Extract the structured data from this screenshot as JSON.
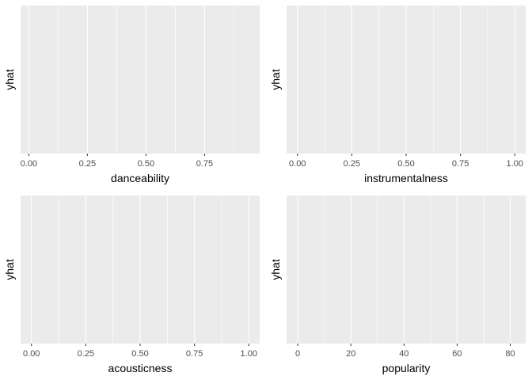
{
  "chart_data": [
    {
      "type": "line",
      "xlabel": "danceability",
      "ylabel": "yhat",
      "xlim": [
        -0.035,
        0.985
      ],
      "ticks": [
        0.0,
        0.25,
        0.5,
        0.75
      ],
      "tick_labels": [
        "0.00",
        "0.25",
        "0.50",
        "0.75"
      ],
      "grid": true,
      "series": []
    },
    {
      "type": "line",
      "xlabel": "instrumentalness",
      "ylabel": "yhat",
      "xlim": [
        -0.05,
        1.05
      ],
      "ticks": [
        0.0,
        0.25,
        0.5,
        0.75,
        1.0
      ],
      "tick_labels": [
        "0.00",
        "0.25",
        "0.50",
        "0.75",
        "1.00"
      ],
      "grid": true,
      "series": []
    },
    {
      "type": "line",
      "xlabel": "acousticness",
      "ylabel": "yhat",
      "xlim": [
        -0.05,
        1.05
      ],
      "ticks": [
        0.0,
        0.25,
        0.5,
        0.75,
        1.0
      ],
      "tick_labels": [
        "0.00",
        "0.25",
        "0.50",
        "0.75",
        "1.00"
      ],
      "grid": true,
      "series": []
    },
    {
      "type": "line",
      "xlabel": "popularity",
      "ylabel": "yhat",
      "xlim": [
        -4.2,
        85.8
      ],
      "ticks": [
        0,
        20,
        40,
        60,
        80
      ],
      "tick_labels": [
        "0",
        "20",
        "40",
        "60",
        "80"
      ],
      "grid": true,
      "series": []
    }
  ]
}
